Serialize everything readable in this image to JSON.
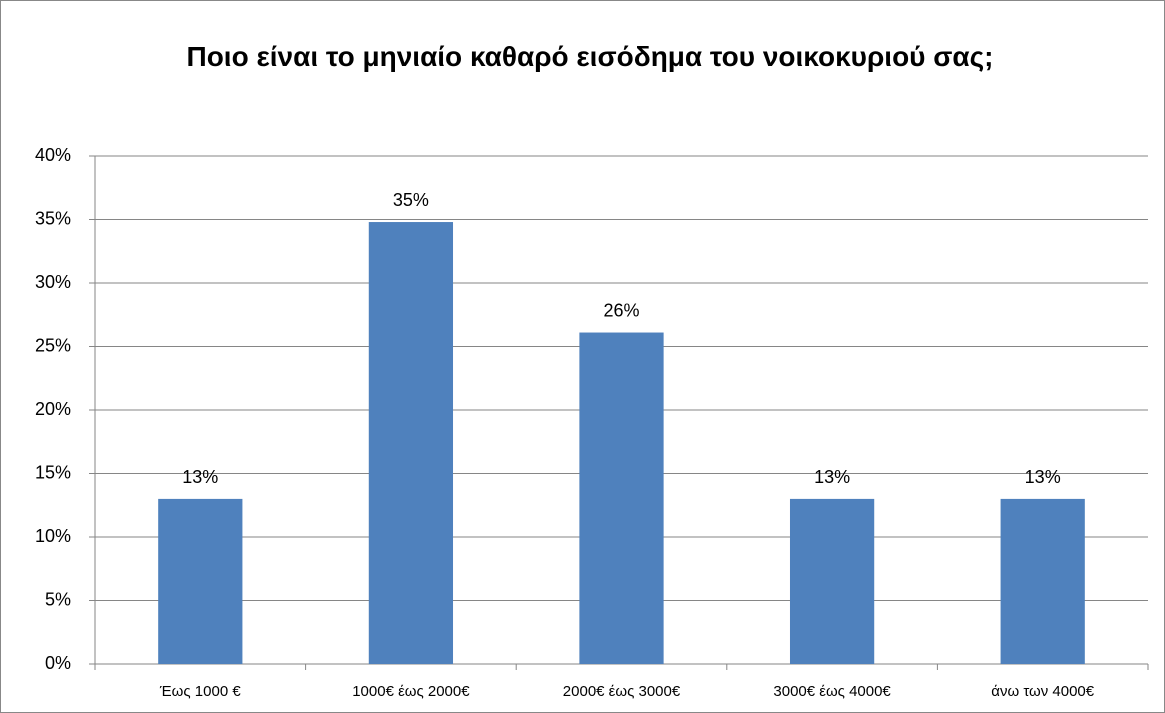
{
  "chart_data": {
    "type": "bar",
    "title": "Ποιο είναι το μηνιαίο καθαρό εισόδημα του νοικοκυριού σας;",
    "categories": [
      "Έως 1000 €",
      "1000€ έως 2000€",
      "2000€ έως 3000€",
      "3000€ έως 4000€",
      "άνω των 4000€"
    ],
    "values": [
      13.0,
      34.8,
      26.1,
      13.0,
      13.0
    ],
    "value_labels": [
      "13%",
      "35%",
      "26%",
      "13%",
      "13%"
    ],
    "color": "#4f81bd",
    "ylim": [
      0,
      40
    ],
    "yticks": [
      {
        "value": 0,
        "label": "0%"
      },
      {
        "value": 5,
        "label": "5%"
      },
      {
        "value": 10,
        "label": "10%"
      },
      {
        "value": 15,
        "label": "15%"
      },
      {
        "value": 20,
        "label": "20%"
      },
      {
        "value": 25,
        "label": "25%"
      },
      {
        "value": 30,
        "label": "30%"
      },
      {
        "value": 35,
        "label": "35%"
      },
      {
        "value": 40,
        "label": "40%"
      }
    ],
    "grid": true
  }
}
